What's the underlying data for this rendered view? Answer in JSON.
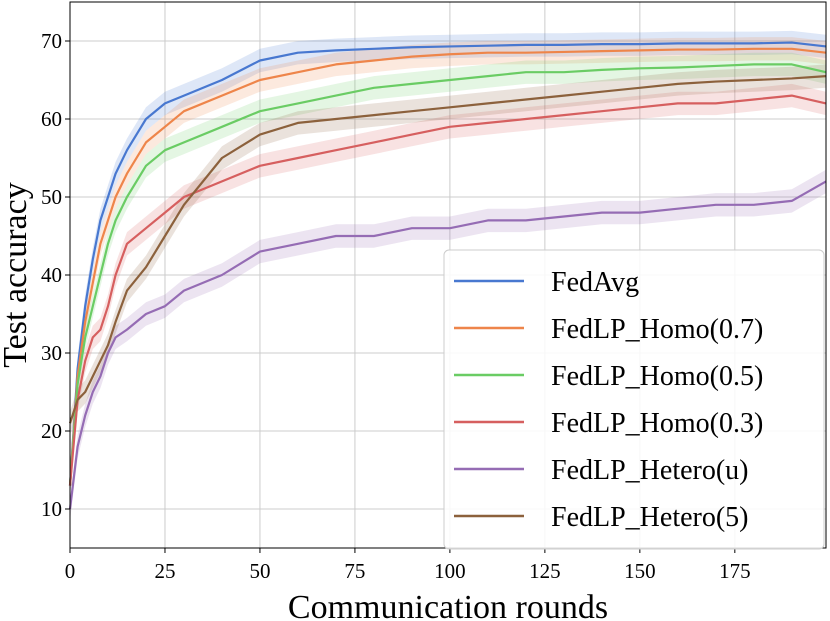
{
  "chart_data": {
    "type": "line",
    "xlabel": "Communication rounds",
    "ylabel": "Test accuracy",
    "xlim": [
      0,
      199
    ],
    "ylim": [
      5,
      75
    ],
    "xticks": [
      0,
      25,
      50,
      75,
      100,
      125,
      150,
      175
    ],
    "yticks": [
      10,
      20,
      30,
      40,
      50,
      60,
      70
    ],
    "grid": true,
    "legend_position": "lower-right",
    "x": [
      0,
      2,
      4,
      6,
      8,
      10,
      12,
      15,
      20,
      25,
      30,
      40,
      50,
      60,
      70,
      80,
      90,
      100,
      110,
      120,
      130,
      140,
      150,
      160,
      170,
      180,
      190,
      199
    ],
    "series": [
      {
        "name": "FedAvg",
        "color": "#4878d0",
        "values": [
          13,
          28,
          36,
          42,
          47,
          50,
          53,
          56,
          60,
          62,
          63,
          65,
          67.5,
          68.5,
          68.8,
          69,
          69.2,
          69.3,
          69.4,
          69.5,
          69.5,
          69.6,
          69.6,
          69.7,
          69.7,
          69.7,
          69.8,
          69.3
        ]
      },
      {
        "name": "FedLP_Homo(0.7)",
        "color": "#ee854a",
        "values": [
          13,
          27,
          34,
          39,
          44,
          47,
          50,
          53,
          57,
          59,
          61,
          63,
          65,
          66,
          67,
          67.5,
          68,
          68.3,
          68.5,
          68.5,
          68.6,
          68.7,
          68.8,
          68.9,
          68.9,
          69,
          69,
          68.5
        ]
      },
      {
        "name": "FedLP_Homo(0.5)",
        "color": "#6acc64",
        "values": [
          13,
          26,
          32,
          36,
          40,
          44,
          47,
          50,
          54,
          56,
          57,
          59,
          61,
          62,
          63,
          64,
          64.5,
          65,
          65.5,
          66,
          66,
          66.3,
          66.5,
          66.6,
          66.8,
          67,
          67,
          66
        ]
      },
      {
        "name": "FedLP_Homo(0.3)",
        "color": "#d65f5f",
        "values": [
          13,
          24,
          29,
          32,
          33,
          36,
          40,
          44,
          46,
          48,
          50,
          52,
          54,
          55,
          56,
          57,
          58,
          59,
          59.5,
          60,
          60.5,
          61,
          61.5,
          62,
          62,
          62.5,
          63,
          62
        ]
      },
      {
        "name": "FedLP_Hetero(u)",
        "color": "#956cb4",
        "values": [
          10,
          18,
          22,
          25,
          27,
          30,
          32,
          33,
          35,
          36,
          38,
          40,
          43,
          44,
          45,
          45,
          46,
          46,
          47,
          47,
          47.5,
          48,
          48,
          48.5,
          49,
          49,
          49.5,
          52
        ]
      },
      {
        "name": "FedLP_Hetero(5)",
        "color": "#8c613c",
        "values": [
          21,
          24,
          25,
          27,
          29,
          31,
          34,
          38,
          41,
          45,
          49,
          55,
          58,
          59.5,
          60,
          60.5,
          61,
          61.5,
          62,
          62.5,
          63,
          63.5,
          64,
          64.5,
          64.8,
          65,
          65.2,
          65.5
        ]
      }
    ]
  }
}
